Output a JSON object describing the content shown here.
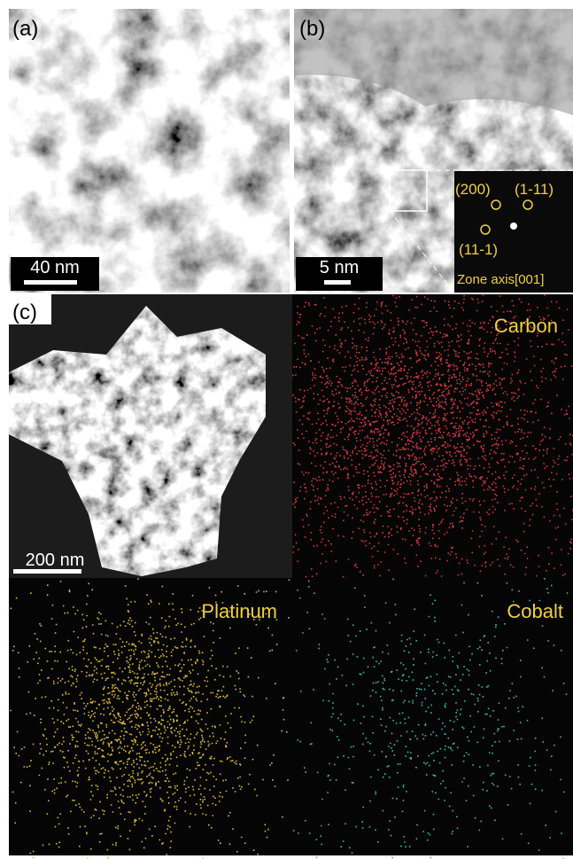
{
  "panels": {
    "a": {
      "label": "(a)",
      "scale_bar": "40 nm"
    },
    "b": {
      "label": "(b)",
      "scale_bar": "5 nm",
      "inset": {
        "spots": [
          "(200)",
          "(1-11)",
          "(11-1)"
        ],
        "zone_axis": "Zone axis[001]"
      }
    },
    "c": {
      "label": "(c)",
      "scale_bar": "200 nm",
      "maps": [
        "Carbon",
        "Platinum",
        "Cobalt"
      ]
    }
  }
}
